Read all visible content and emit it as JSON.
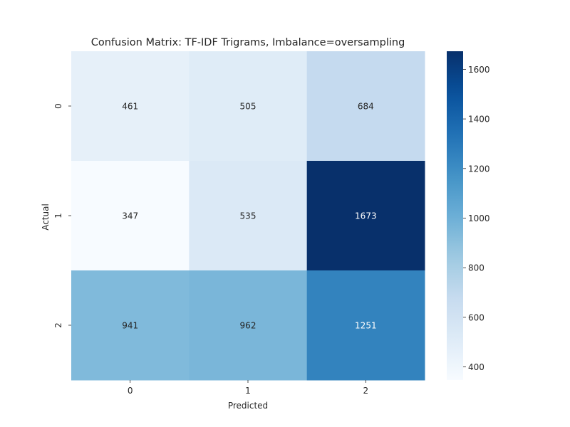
{
  "chart_data": {
    "type": "heatmap",
    "title": "Confusion Matrix: TF-IDF Trigrams, Imbalance=oversampling",
    "xlabel": "Predicted",
    "ylabel": "Actual",
    "x_categories": [
      "0",
      "1",
      "2"
    ],
    "y_categories": [
      "0",
      "1",
      "2"
    ],
    "values": [
      [
        461,
        505,
        684
      ],
      [
        347,
        535,
        1673
      ],
      [
        941,
        962,
        1251
      ]
    ],
    "colormap": "Blues",
    "value_range": [
      347,
      1673
    ],
    "colorbar_ticks": [
      400,
      600,
      800,
      1000,
      1200,
      1400,
      1600
    ]
  }
}
